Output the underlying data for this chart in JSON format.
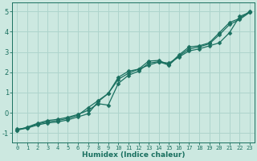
{
  "xlabel": "Humidex (Indice chaleur)",
  "bg_color": "#cce8e0",
  "grid_color": "#aed4cc",
  "line_color": "#1a7060",
  "xlim": [
    -0.5,
    23.5
  ],
  "ylim": [
    -1.45,
    5.45
  ],
  "yticks": [
    -1,
    0,
    1,
    2,
    3,
    4,
    5
  ],
  "xticks": [
    0,
    1,
    2,
    3,
    4,
    5,
    6,
    7,
    8,
    9,
    10,
    11,
    12,
    13,
    14,
    15,
    16,
    17,
    18,
    19,
    20,
    21,
    22,
    23
  ],
  "line1_x": [
    0,
    1,
    2,
    3,
    4,
    5,
    6,
    7,
    8,
    9,
    10,
    11,
    12,
    13,
    14,
    15,
    16,
    17,
    18,
    19,
    20,
    21,
    22,
    23
  ],
  "line1_y": [
    -0.8,
    -0.75,
    -0.6,
    -0.5,
    -0.45,
    -0.35,
    -0.2,
    -0.05,
    0.55,
    0.95,
    1.65,
    1.95,
    2.15,
    2.35,
    2.5,
    2.45,
    2.75,
    3.05,
    3.15,
    3.3,
    3.45,
    3.95,
    4.75,
    4.95
  ],
  "line2_x": [
    0,
    1,
    2,
    3,
    4,
    5,
    6,
    7,
    8,
    9,
    10,
    11,
    12,
    13,
    14,
    15,
    16,
    17,
    18,
    19,
    20,
    21,
    22,
    23
  ],
  "line2_y": [
    -0.85,
    -0.75,
    -0.55,
    -0.45,
    -0.38,
    -0.28,
    -0.12,
    0.25,
    0.6,
    0.95,
    1.75,
    2.05,
    2.15,
    2.55,
    2.58,
    2.38,
    2.85,
    3.25,
    3.3,
    3.45,
    3.95,
    4.45,
    4.65,
    5.0
  ],
  "line3_x": [
    0,
    1,
    2,
    3,
    4,
    5,
    6,
    7,
    8,
    9,
    10,
    11,
    12,
    13,
    14,
    15,
    16,
    17,
    18,
    19,
    20,
    21,
    22,
    23
  ],
  "line3_y": [
    -0.85,
    -0.7,
    -0.52,
    -0.38,
    -0.32,
    -0.22,
    -0.08,
    0.12,
    0.45,
    0.38,
    1.45,
    1.85,
    2.05,
    2.45,
    2.52,
    2.35,
    2.8,
    3.15,
    3.25,
    3.4,
    3.85,
    4.35,
    4.6,
    4.95
  ]
}
